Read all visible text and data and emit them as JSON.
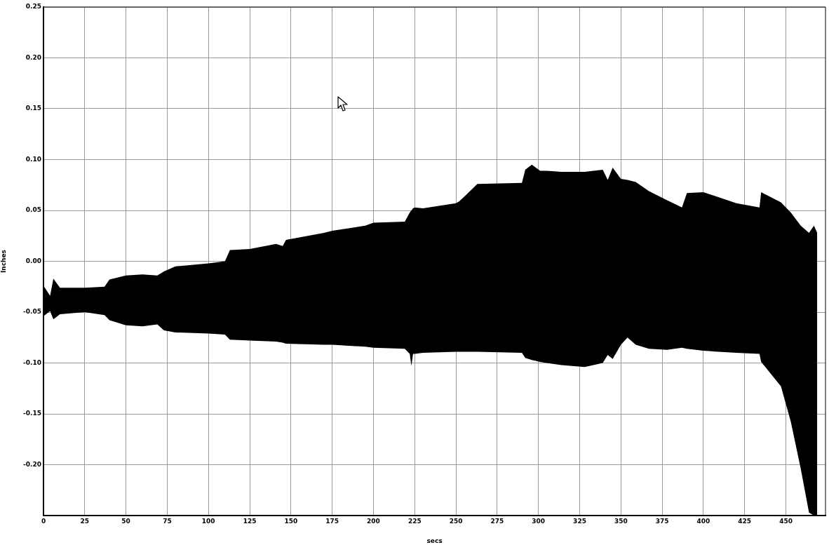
{
  "chart_data": {
    "type": "line",
    "xlabel": "secs",
    "ylabel": "Inches",
    "xlim": [
      0,
      474
    ],
    "xticks": [
      0,
      25,
      50,
      75,
      100,
      125,
      150,
      175,
      200,
      225,
      250,
      275,
      300,
      325,
      350,
      375,
      400,
      425,
      450
    ],
    "ylim": [
      -0.25,
      0.25
    ],
    "yticks": [
      {
        "value": -0.25,
        "label": null
      },
      {
        "value": -0.2,
        "label": "-0.20"
      },
      {
        "value": -0.15,
        "label": "-0.15"
      },
      {
        "value": -0.1,
        "label": "-0.10"
      },
      {
        "value": -0.05,
        "label": "-0.05"
      },
      {
        "value": 0,
        "label": "0.00"
      },
      {
        "value": 0.05,
        "label": "0.05"
      },
      {
        "value": 0.1,
        "label": "0.10"
      },
      {
        "value": 0.15,
        "label": "0.15"
      },
      {
        "value": 0.2,
        "label": "0.20"
      },
      {
        "value": 0.25,
        "label": "0.25"
      }
    ],
    "grid": true,
    "legend": false,
    "x": [
      0,
      4,
      6,
      10,
      25,
      37,
      40,
      50,
      60,
      69,
      73,
      80,
      100,
      110,
      113,
      125,
      141,
      145,
      147,
      170,
      175,
      195,
      200,
      219,
      222,
      223,
      224,
      225,
      230,
      250,
      252,
      256,
      263,
      290,
      292,
      296,
      301,
      305,
      314,
      328,
      339,
      342,
      345,
      350,
      354,
      359,
      367,
      378,
      387,
      390,
      400,
      420,
      434,
      435,
      447,
      453,
      459,
      464,
      467,
      469
    ],
    "series": [
      {
        "color": "#000000",
        "values": [
          null,
          null,
          null,
          null,
          null,
          null,
          null,
          null,
          null,
          null,
          null,
          null,
          null,
          null,
          null,
          null,
          null,
          null,
          null,
          null,
          null,
          null,
          null,
          null,
          null,
          null,
          null,
          null,
          null,
          null,
          null,
          null,
          null,
          null,
          null,
          null,
          null,
          null,
          null,
          null,
          null,
          null,
          null,
          null,
          null,
          null,
          null,
          null,
          null,
          null,
          null,
          null,
          null,
          null,
          null,
          null,
          null,
          null,
          null,
          null
        ],
        "lower": [
          -0.054,
          -0.049,
          -0.057,
          -0.052,
          -0.05,
          -0.053,
          -0.058,
          -0.063,
          -0.064,
          -0.062,
          -0.068,
          -0.07,
          -0.071,
          -0.072,
          -0.077,
          -0.078,
          -0.079,
          -0.08,
          -0.081,
          -0.082,
          -0.082,
          -0.084,
          -0.085,
          -0.086,
          -0.091,
          -0.103,
          -0.091,
          -0.091,
          -0.09,
          -0.089,
          -0.089,
          -0.089,
          -0.089,
          -0.09,
          -0.095,
          -0.097,
          -0.099,
          -0.1,
          -0.102,
          -0.104,
          -0.1,
          -0.092,
          -0.096,
          -0.082,
          -0.075,
          -0.082,
          -0.086,
          -0.087,
          -0.085,
          -0.086,
          -0.088,
          -0.09,
          -0.091,
          -0.099,
          -0.123,
          -0.158,
          -0.204,
          -0.247,
          -0.25,
          -0.25
        ],
        "upper": [
          -0.024,
          -0.034,
          -0.017,
          -0.026,
          -0.026,
          -0.025,
          -0.018,
          -0.014,
          -0.013,
          -0.014,
          -0.01,
          -0.005,
          -0.002,
          0,
          0.011,
          0.012,
          0.017,
          0.015,
          0.021,
          0.028,
          0.03,
          0.035,
          0.038,
          0.039,
          0.048,
          0.05,
          0.052,
          0.053,
          0.052,
          0.057,
          0.059,
          0.065,
          0.076,
          0.077,
          0.09,
          0.095,
          0.089,
          0.089,
          0.088,
          0.088,
          0.09,
          0.08,
          0.092,
          0.081,
          0.08,
          0.078,
          0.069,
          0.06,
          0.053,
          0.067,
          0.068,
          0.057,
          0.053,
          0.068,
          0.058,
          0.048,
          0.035,
          0.028,
          0.035,
          0.028
        ]
      }
    ]
  }
}
